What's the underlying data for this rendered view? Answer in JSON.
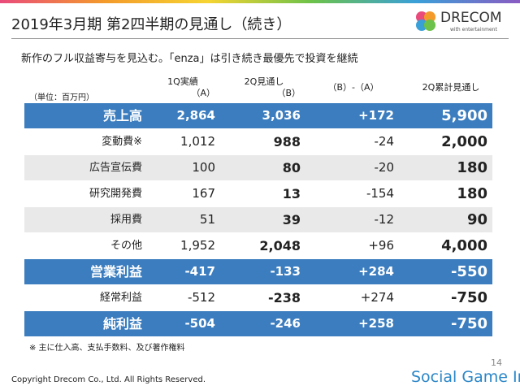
{
  "header": {
    "title": "2019年3月期 第2四半期の見通し（続き）",
    "subtitle": "新作のフル収益寄与を見込む。「enza」は引き続き最優先で投資を継続"
  },
  "logo": {
    "name": "DRECOM",
    "tagline": "with entertainment"
  },
  "table": {
    "unit": "（単位：百万円）",
    "columns": [
      [
        "1Q実績",
        "（A）"
      ],
      [
        "2Q見通し",
        "（B）"
      ],
      [
        "（B）-（A）"
      ],
      [
        "2Q累計見通し"
      ]
    ],
    "rows": [
      {
        "label": "売上高",
        "cells": [
          "2,864",
          "3,036",
          "+172",
          "5,900"
        ],
        "highlight": true
      },
      {
        "label": "変動費※",
        "cells": [
          "1,012",
          "988",
          "-24",
          "2,000"
        ],
        "highlight": false
      },
      {
        "label": "広告宣伝費",
        "cells": [
          "100",
          "80",
          "-20",
          "180"
        ],
        "highlight": false
      },
      {
        "label": "研究開発費",
        "cells": [
          "167",
          "13",
          "-154",
          "180"
        ],
        "highlight": false
      },
      {
        "label": "採用費",
        "cells": [
          "51",
          "39",
          "-12",
          "90"
        ],
        "highlight": false
      },
      {
        "label": "その他",
        "cells": [
          "1,952",
          "2,048",
          "+96",
          "4,000"
        ],
        "highlight": false
      },
      {
        "label": "営業利益",
        "cells": [
          "-417",
          "-133",
          "+284",
          "-550"
        ],
        "highlight": true
      },
      {
        "label": "経常利益",
        "cells": [
          "-512",
          "-238",
          "+274",
          "-750"
        ],
        "highlight": false
      },
      {
        "label": "純利益",
        "cells": [
          "-504",
          "-246",
          "+258",
          "-750"
        ],
        "highlight": true
      }
    ]
  },
  "footnote": "※ 主に仕入高、支払手数料、及び著作権料",
  "footer": {
    "copyright": "Copyright Drecom Co., Ltd. All Rights Reserved.",
    "watermark": "Social Game Info",
    "page": "14"
  }
}
